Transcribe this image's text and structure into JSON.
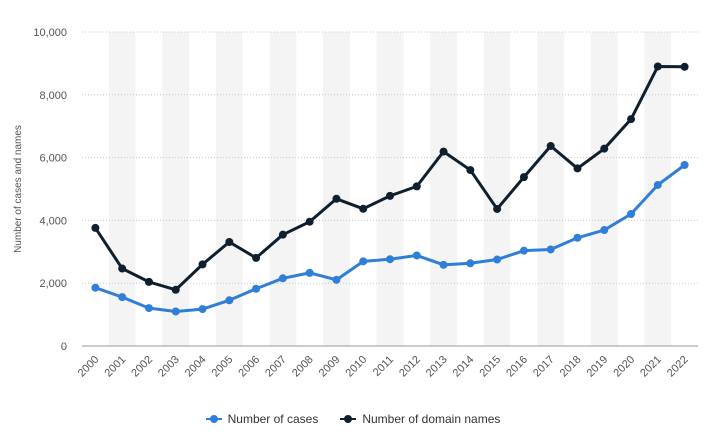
{
  "chart_data": {
    "type": "line",
    "ylabel": "Number of cases and names",
    "xlabel": "",
    "ylim": [
      0,
      10000
    ],
    "yticks": [
      0,
      2000,
      4000,
      6000,
      8000,
      10000
    ],
    "ytick_labels": [
      "0",
      "2,000",
      "4,000",
      "6,000",
      "8,000",
      "10,000"
    ],
    "grid": true,
    "legend_position": "bottom-center",
    "x": [
      "2000",
      "2001",
      "2002",
      "2003",
      "2004",
      "2005",
      "2006",
      "2007",
      "2008",
      "2009",
      "2010",
      "2011",
      "2012",
      "2013",
      "2014",
      "2015",
      "2016",
      "2017",
      "2018",
      "2019",
      "2020",
      "2021",
      "2022"
    ],
    "series": [
      {
        "name": "Number of cases",
        "color": "#2f7ed8",
        "values": [
          1857,
          1557,
          1207,
          1100,
          1176,
          1456,
          1823,
          2156,
          2329,
          2107,
          2696,
          2764,
          2884,
          2585,
          2634,
          2754,
          3036,
          3074,
          3447,
          3693,
          4204,
          5128,
          5764
        ]
      },
      {
        "name": "Number of domain names",
        "color": "#0f1f2e",
        "values": [
          3760,
          2467,
          2042,
          1790,
          2600,
          3312,
          2806,
          3545,
          3958,
          4688,
          4370,
          4781,
          5084,
          6191,
          5603,
          4364,
          5378,
          6370,
          5655,
          6284,
          7224,
          8903,
          8892
        ]
      }
    ]
  }
}
